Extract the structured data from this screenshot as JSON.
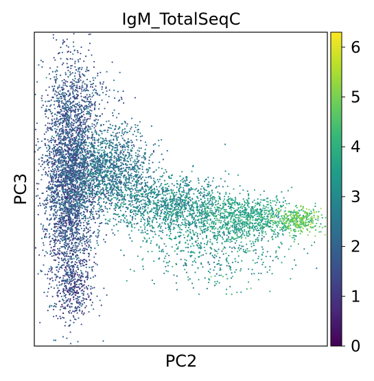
{
  "chart_data": {
    "type": "scatter",
    "title": "IgM_TotalSeqC",
    "xlabel": "PC2",
    "ylabel": "PC3",
    "x_ticks_shown": false,
    "y_ticks_shown": false,
    "grid": false,
    "colormap": "viridis",
    "colorbar": {
      "min": 0,
      "max": 6.3,
      "ticks": [
        0,
        1,
        2,
        3,
        4,
        5,
        6
      ],
      "tick_labels": [
        "0",
        "1",
        "2",
        "3",
        "4",
        "5",
        "6"
      ]
    },
    "colors": {
      "viridis_stops": [
        "#440154",
        "#482878",
        "#3e4a89",
        "#31688e",
        "#26828e",
        "#1f9e89",
        "#35b779",
        "#6ece58",
        "#b5de2b",
        "#fde725"
      ]
    },
    "x_range": [
      0,
      1
    ],
    "y_range": [
      0,
      1
    ],
    "clusters": [
      {
        "x": 0.12,
        "y": 0.53,
        "sx": 0.045,
        "sy": 0.17,
        "n": 3200,
        "value_mean": 1.7,
        "value_sd": 0.5
      },
      {
        "x": 0.26,
        "y": 0.56,
        "sx": 0.07,
        "sy": 0.07,
        "n": 1400,
        "value_mean": 2.4,
        "value_sd": 0.5
      },
      {
        "x": 0.46,
        "y": 0.45,
        "sx": 0.1,
        "sy": 0.045,
        "n": 1100,
        "value_mean": 3.0,
        "value_sd": 0.45
      },
      {
        "x": 0.72,
        "y": 0.41,
        "sx": 0.1,
        "sy": 0.035,
        "n": 900,
        "value_mean": 3.7,
        "value_sd": 0.4
      },
      {
        "x": 0.9,
        "y": 0.4,
        "sx": 0.04,
        "sy": 0.02,
        "n": 320,
        "value_mean": 4.8,
        "value_sd": 0.4
      },
      {
        "x": 0.6,
        "y": 0.31,
        "sx": 0.13,
        "sy": 0.06,
        "n": 500,
        "value_mean": 3.3,
        "value_sd": 0.6
      },
      {
        "x": 0.17,
        "y": 0.8,
        "sx": 0.06,
        "sy": 0.06,
        "n": 220,
        "value_mean": 1.8,
        "value_sd": 0.5
      },
      {
        "x": 0.13,
        "y": 0.18,
        "sx": 0.03,
        "sy": 0.05,
        "n": 300,
        "value_mean": 1.3,
        "value_sd": 0.5
      }
    ]
  }
}
